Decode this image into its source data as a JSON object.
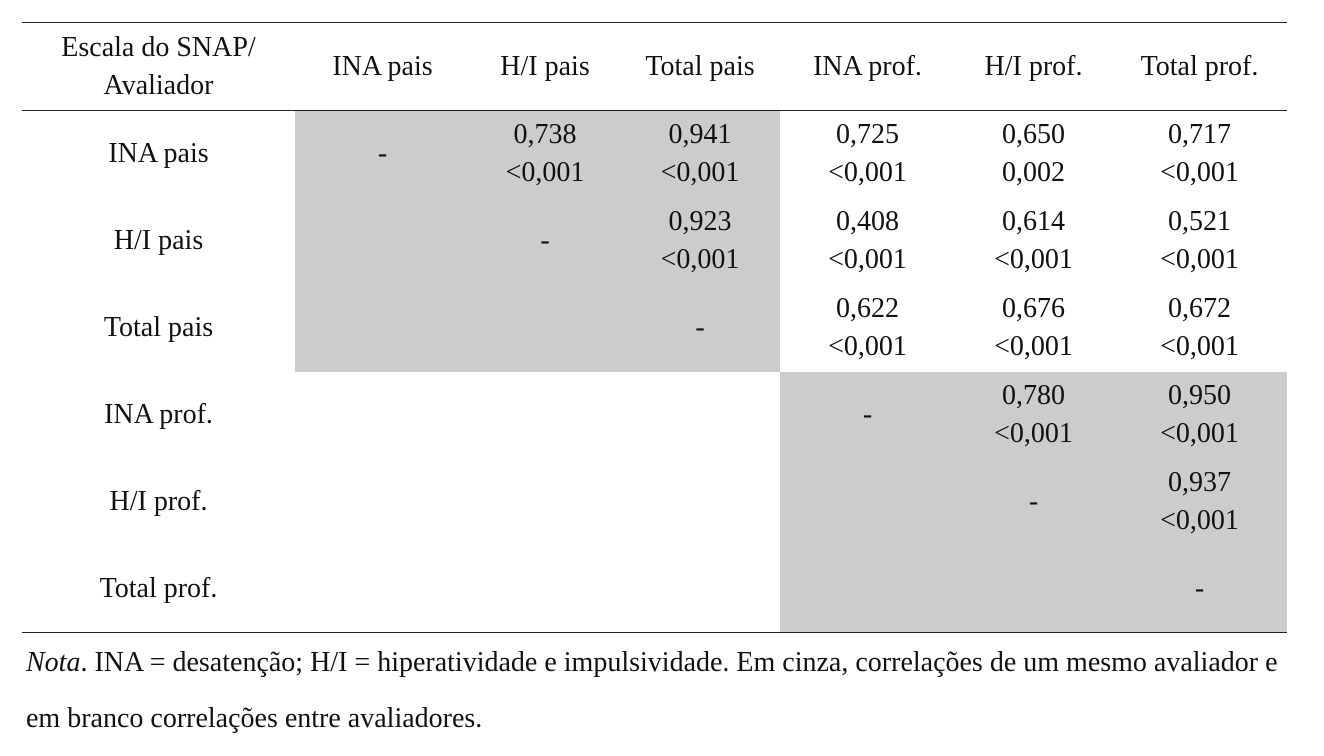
{
  "table": {
    "header": [
      "Escala do SNAP/\nAvaliador",
      "INA pais",
      "H/I pais",
      "Total pais",
      "INA prof.",
      "H/I prof.",
      "Total prof."
    ],
    "rows": [
      {
        "label": "INA pais",
        "cells": [
          "-",
          {
            "r": "0,738",
            "p": "<0,001"
          },
          {
            "r": "0,941",
            "p": "<0,001"
          },
          {
            "r": "0,725",
            "p": "<0,001"
          },
          {
            "r": "0,650",
            "p": "0,002"
          },
          {
            "r": "0,717",
            "p": "<0,001"
          }
        ]
      },
      {
        "label": "H/I pais",
        "cells": [
          null,
          "-",
          {
            "r": "0,923",
            "p": "<0,001"
          },
          {
            "r": "0,408",
            "p": "<0,001"
          },
          {
            "r": "0,614",
            "p": "<0,001"
          },
          {
            "r": "0,521",
            "p": "<0,001"
          }
        ]
      },
      {
        "label": "Total pais",
        "cells": [
          null,
          null,
          "-",
          {
            "r": "0,622",
            "p": "<0,001"
          },
          {
            "r": "0,676",
            "p": "<0,001"
          },
          {
            "r": "0,672",
            "p": "<0,001"
          }
        ]
      },
      {
        "label": "INA prof.",
        "cells": [
          null,
          null,
          null,
          "-",
          {
            "r": "0,780",
            "p": "<0,001"
          },
          {
            "r": "0,950",
            "p": "<0,001"
          }
        ]
      },
      {
        "label": "H/I prof.",
        "cells": [
          null,
          null,
          null,
          null,
          "-",
          {
            "r": "0,937",
            "p": "<0,001"
          }
        ]
      },
      {
        "label": "Total prof.",
        "cells": [
          null,
          null,
          null,
          null,
          null,
          "-"
        ]
      }
    ]
  },
  "note": {
    "label": "Nota",
    "text": ". INA = desatenção; H/I = hiperatividade e impulsividade. Em cinza, correlações de um mesmo avaliador e em branco correlações entre avaliadores."
  }
}
